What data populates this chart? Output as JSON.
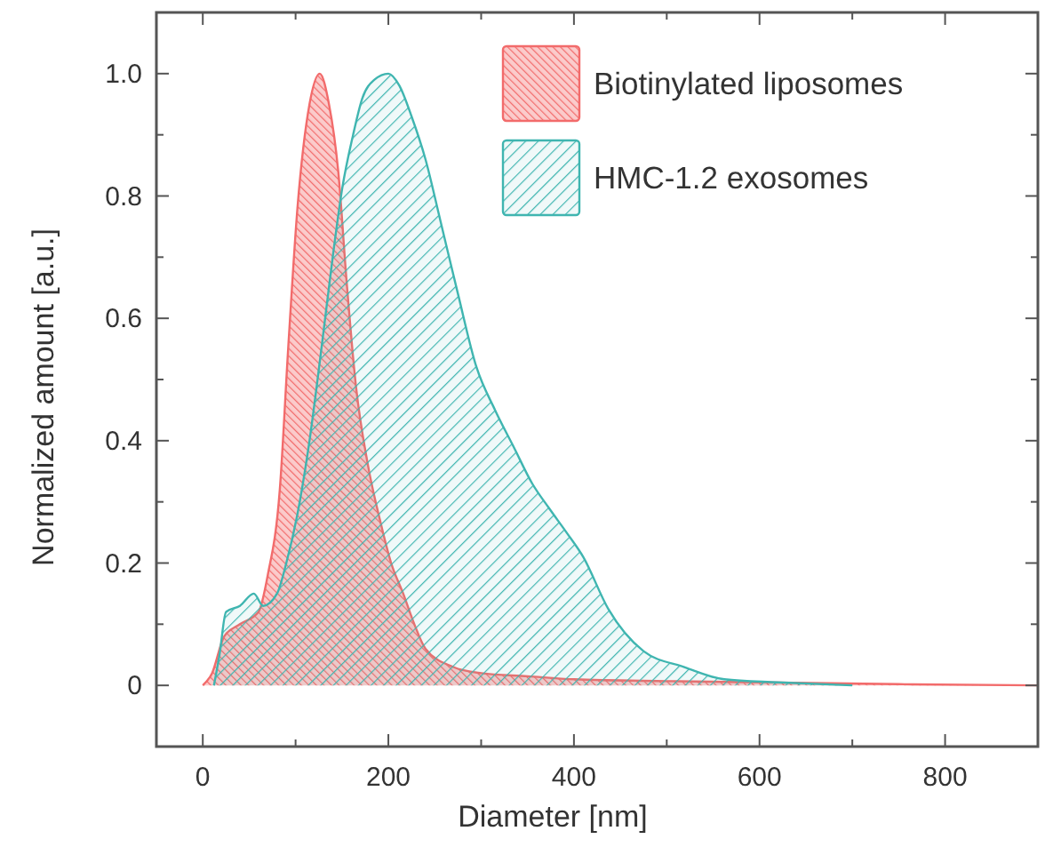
{
  "chart_data": {
    "type": "area",
    "xlabel": "Diameter [nm]",
    "ylabel": "Normalized amount [a.u.]",
    "xlim": [
      -50,
      900
    ],
    "ylim": [
      -0.1,
      1.1
    ],
    "xticks": [
      0,
      {
        "value": 100,
        "label": null
      },
      200,
      {
        "value": 300,
        "label": null
      },
      400,
      {
        "value": 500,
        "label": null
      },
      600,
      {
        "value": 700,
        "label": null
      },
      800
    ],
    "yticks": [
      0,
      {
        "value": 0.1,
        "label": null
      },
      0.2,
      {
        "value": 0.3,
        "label": null
      },
      0.4,
      {
        "value": 0.5,
        "label": null
      },
      0.6,
      {
        "value": 0.7,
        "label": null
      },
      0.8,
      {
        "value": 0.9,
        "label": null
      },
      {
        "value": 1,
        "label": "1.0"
      }
    ],
    "grid": false,
    "legend": "top right",
    "series": [
      {
        "name": "Biotinylated liposomes",
        "color": "#f26b6b",
        "x": [
          0,
          10,
          23,
          40,
          60,
          70,
          83,
          92,
          102,
          115,
          126,
          136,
          146,
          155,
          165,
          178,
          191,
          203,
          216,
          228,
          240,
          270,
          300,
          350,
          400,
          500,
          600,
          750,
          900
        ],
        "values": [
          0,
          0.02,
          0.08,
          0.1,
          0.12,
          0.18,
          0.32,
          0.55,
          0.78,
          0.95,
          1.0,
          0.95,
          0.84,
          0.66,
          0.49,
          0.36,
          0.27,
          0.2,
          0.15,
          0.1,
          0.06,
          0.03,
          0.02,
          0.015,
          0.01,
          0.007,
          0.005,
          0.002,
          0
        ]
      },
      {
        "name": "HMC-1.2 exosomes",
        "color": "#3fb5b0",
        "x": [
          12,
          18,
          25,
          40,
          55,
          65,
          80,
          90,
          102,
          115,
          127,
          140,
          150,
          162,
          172,
          185,
          200,
          212,
          225,
          240,
          256,
          275,
          295,
          315,
          335,
          355,
          373,
          392,
          410,
          437,
          475,
          519,
          562,
          620,
          700
        ],
        "values": [
          0,
          0.05,
          0.12,
          0.13,
          0.15,
          0.13,
          0.15,
          0.2,
          0.28,
          0.4,
          0.54,
          0.7,
          0.81,
          0.9,
          0.96,
          0.99,
          1.0,
          0.98,
          0.93,
          0.86,
          0.76,
          0.64,
          0.52,
          0.45,
          0.39,
          0.33,
          0.29,
          0.25,
          0.21,
          0.125,
          0.056,
          0.03,
          0.01,
          0.005,
          0
        ]
      }
    ]
  }
}
